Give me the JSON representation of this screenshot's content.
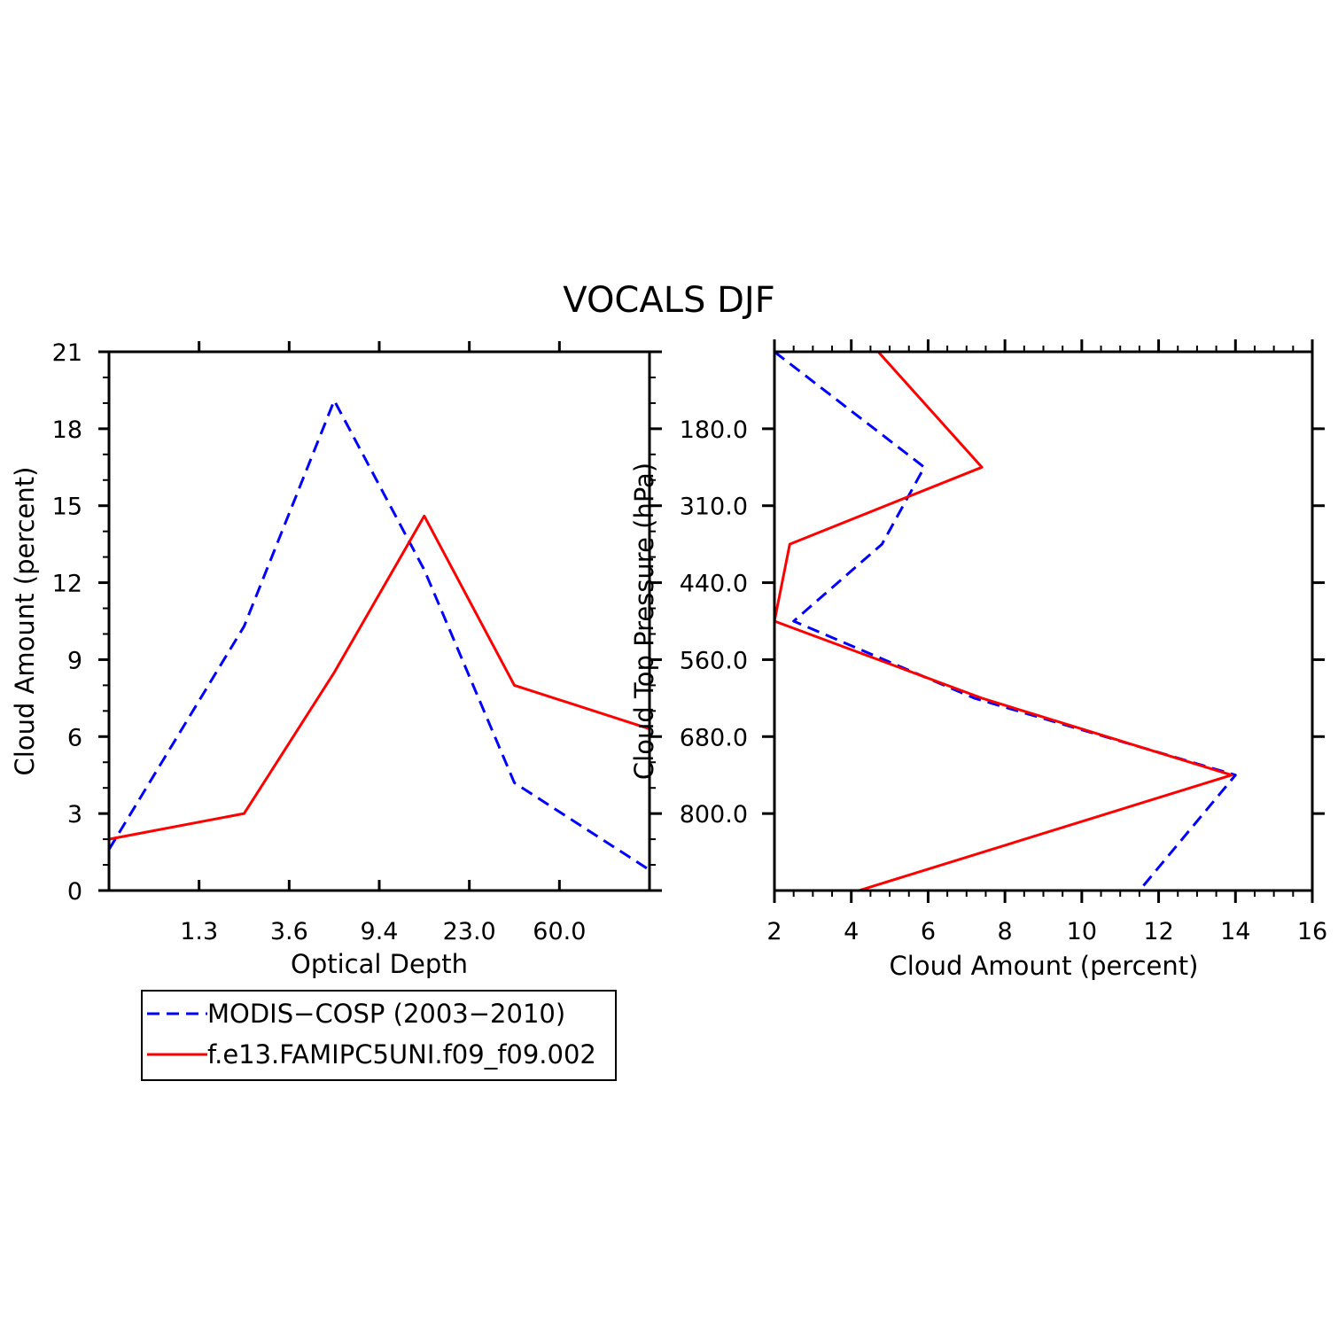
{
  "title": "VOCALS DJF",
  "legend": {
    "items": [
      {
        "label": "MODIS−COSP (2003−2010)",
        "color": "#0000ff",
        "dash": true
      },
      {
        "label": "f.e13.FAMIPC5UNI.f09_f09.002",
        "color": "#ff0000",
        "dash": false
      }
    ]
  },
  "chart_data": [
    {
      "type": "line",
      "xlabel": "Optical Depth",
      "ylabel": "Cloud Amount (percent)",
      "x_tick_labels": [
        "1.3",
        "3.6",
        "9.4",
        "23.0",
        "60.0"
      ],
      "x_bins": [
        "0.3-1.3",
        "1.3-3.6",
        "3.6-9.4",
        "9.4-23.0",
        "23.0-60.0",
        "60.0-"
      ],
      "ylim": [
        0,
        21
      ],
      "y_ticks": [
        0,
        3,
        6,
        9,
        12,
        15,
        18,
        21
      ],
      "series": [
        {
          "name": "MODIS−COSP (2003−2010)",
          "color": "#0000ff",
          "dash": true,
          "values": [
            1.6,
            10.3,
            19.1,
            12.5,
            4.2,
            0.8
          ]
        },
        {
          "name": "f.e13.FAMIPC5UNI.f09_f09.002",
          "color": "#ff0000",
          "dash": false,
          "values": [
            2.0,
            3.0,
            8.5,
            14.6,
            8.0,
            6.3
          ]
        }
      ]
    },
    {
      "type": "line",
      "xlabel": "Cloud Amount (percent)",
      "ylabel": "Cloud Top Pressure (hPa)",
      "xlim": [
        2,
        16
      ],
      "x_ticks": [
        2,
        4,
        6,
        8,
        10,
        12,
        14,
        16
      ],
      "y_tick_labels": [
        "180.0",
        "310.0",
        "440.0",
        "560.0",
        "680.0",
        "800.0"
      ],
      "y_bins": [
        "50-180",
        "180-310",
        "310-440",
        "440-560",
        "560-680",
        "680-800",
        "800-"
      ],
      "series": [
        {
          "name": "MODIS−COSP (2003−2010)",
          "color": "#0000ff",
          "dash": true,
          "values": [
            2.0,
            5.9,
            4.8,
            2.5,
            7.2,
            14.0,
            11.5
          ]
        },
        {
          "name": "f.e13.FAMIPC5UNI.f09_f09.002",
          "color": "#ff0000",
          "dash": false,
          "values": [
            4.7,
            7.4,
            2.4,
            2.0,
            7.4,
            13.9,
            4.2
          ]
        }
      ]
    }
  ]
}
